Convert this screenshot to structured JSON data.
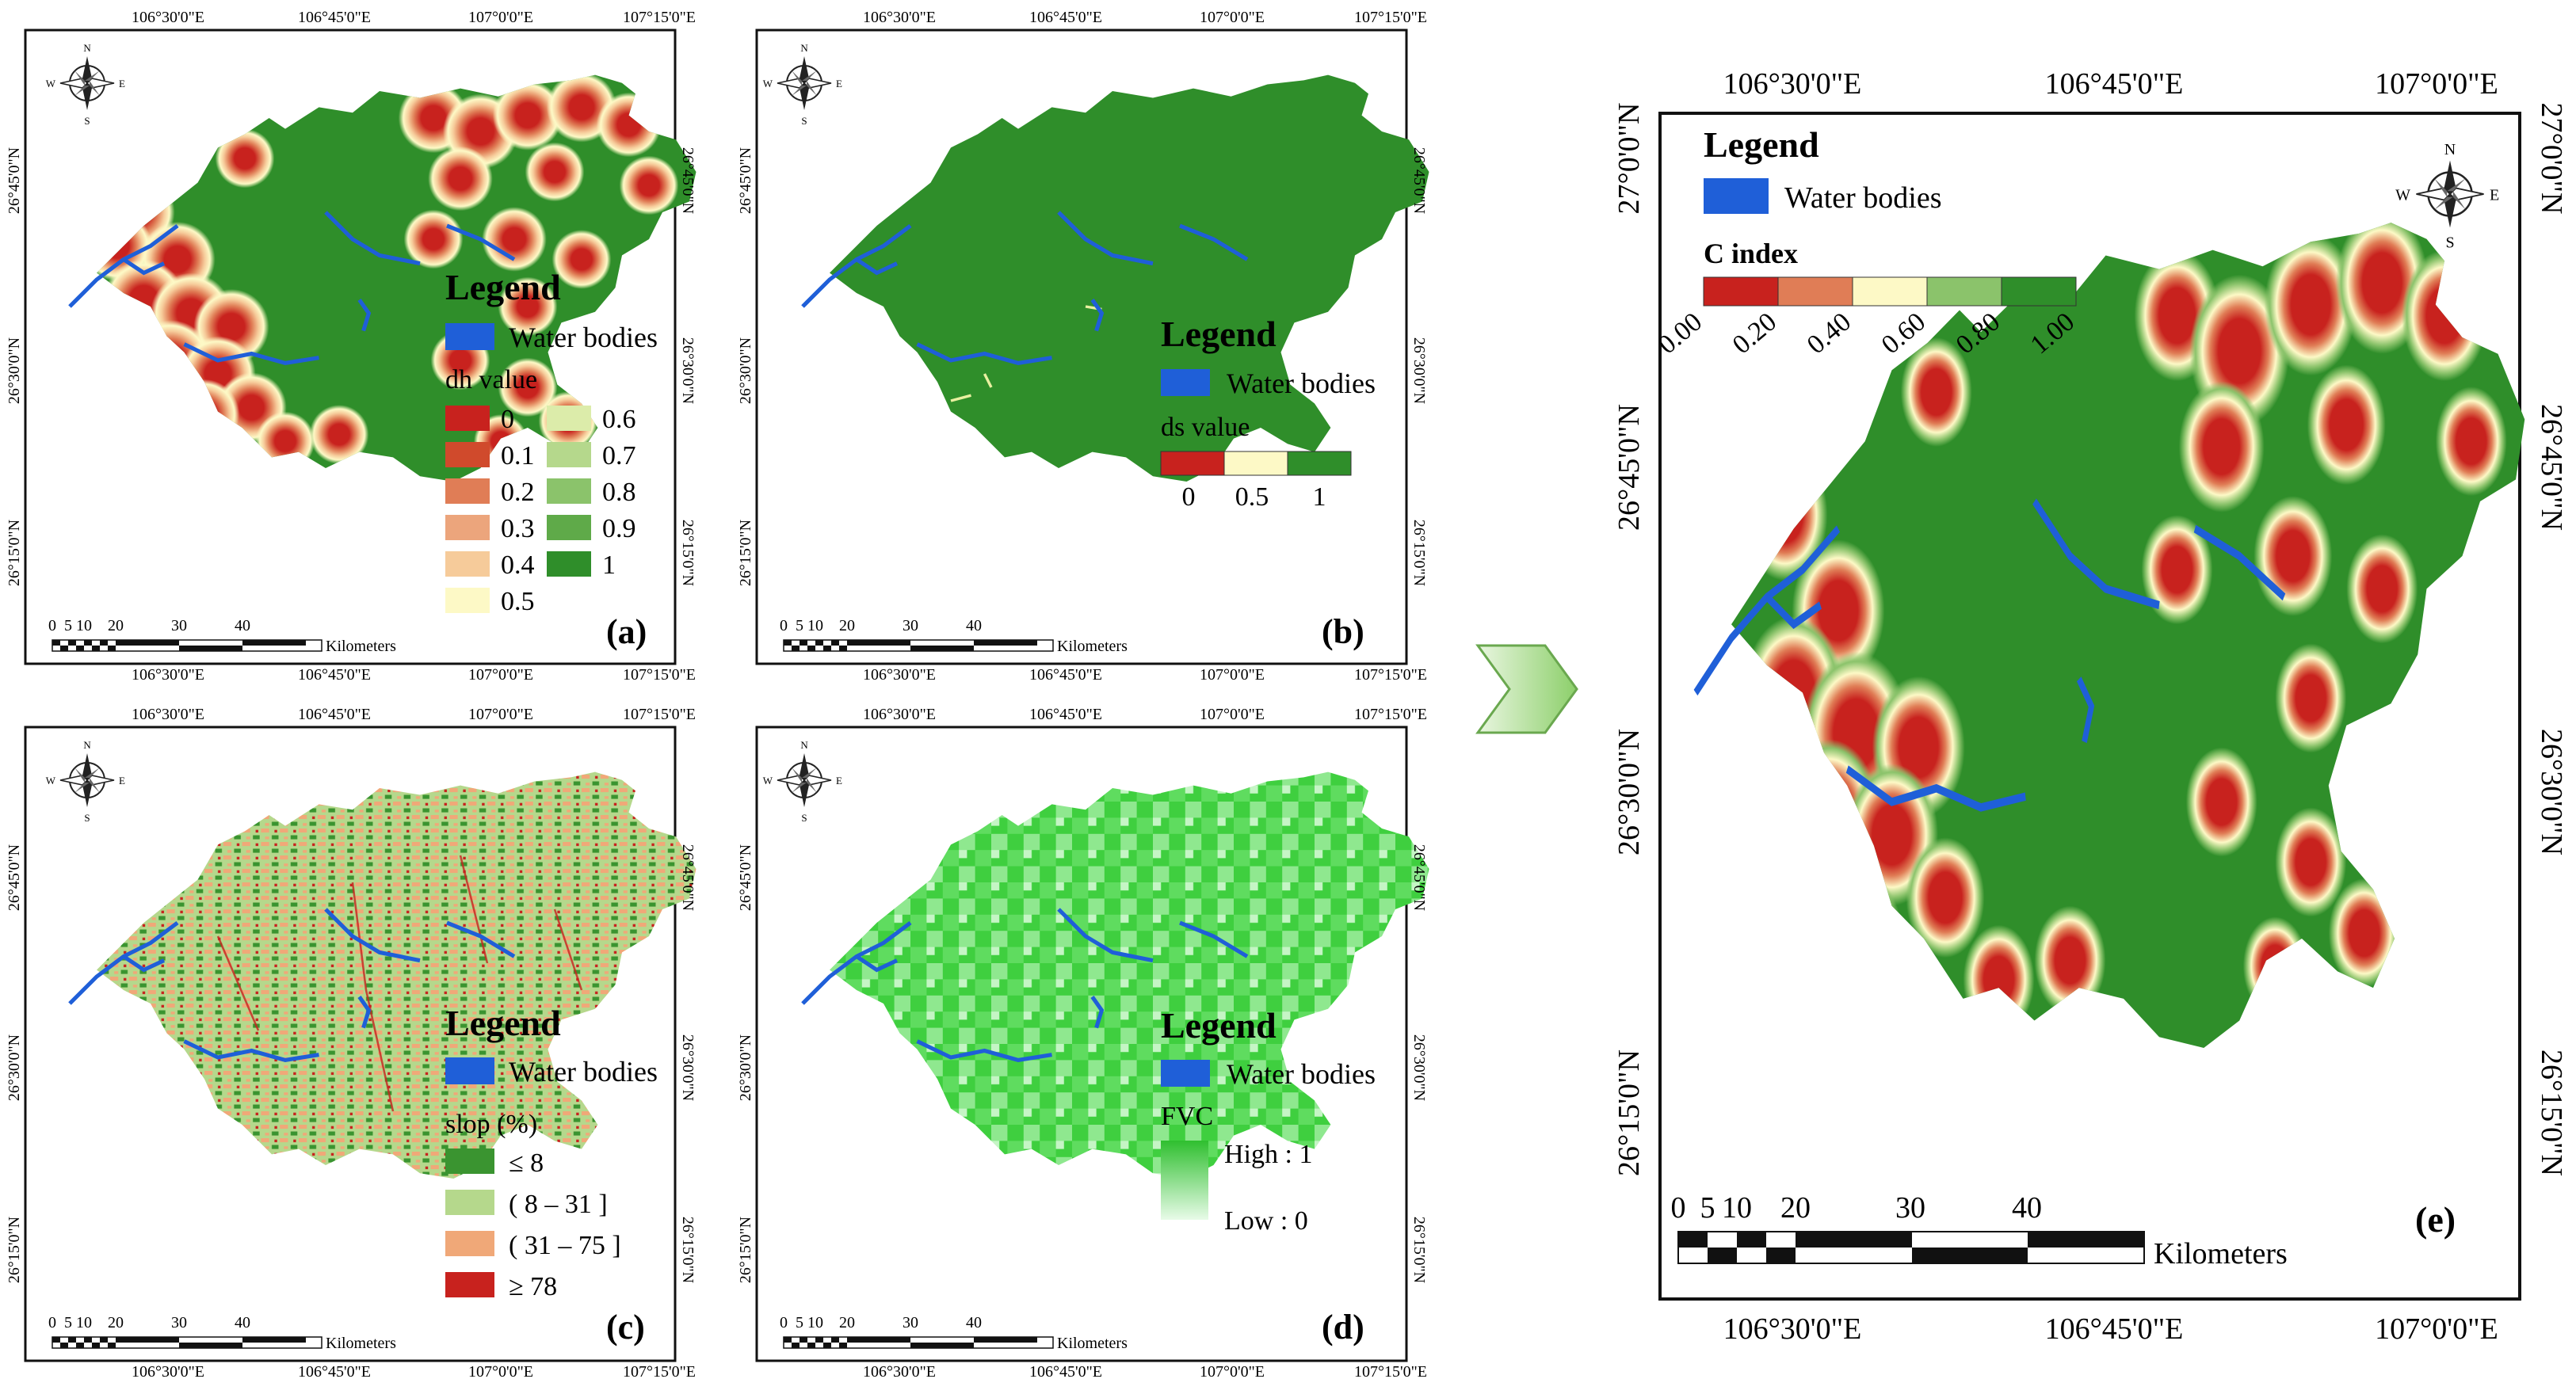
{
  "panels": {
    "a": {
      "letter": "(a)",
      "legend_title": "Legend",
      "water_label": "Water bodies",
      "field_title": "dh value",
      "classes_col1": [
        "0",
        "0.1",
        "0.2",
        "0.3",
        "0.4",
        "0.5"
      ],
      "classes_col2": [
        "0.6",
        "0.7",
        "0.8",
        "0.9",
        "1"
      ],
      "colors_col1": [
        "#c8221e",
        "#d04a2c",
        "#e07d56",
        "#eca57c",
        "#f6cb9a",
        "#fdf9c6"
      ],
      "colors_col2": [
        "#dcecaa",
        "#b5d88c",
        "#8bc36b",
        "#5faa49",
        "#2f8e2a"
      ]
    },
    "b": {
      "letter": "(b)",
      "legend_title": "Legend",
      "water_label": "Water bodies",
      "field_title": "ds value",
      "ramp_labels": [
        "0",
        "0.5",
        "1"
      ],
      "ramp_colors": [
        "#c8221e",
        "#fdf9c6",
        "#2f8e2a"
      ]
    },
    "c": {
      "letter": "(c)",
      "legend_title": "Legend",
      "water_label": "Water bodies",
      "field_title": "slop (%)",
      "classes": [
        "≤ 8",
        "( 8 – 31 ]",
        "( 31 – 75 ]",
        "≥ 78"
      ],
      "colors": [
        "#3a9430",
        "#b5d88c",
        "#f0a878",
        "#c8221e"
      ]
    },
    "d": {
      "letter": "(d)",
      "legend_title": "Legend",
      "water_label": "Water bodies",
      "field_title": "FVC",
      "high_label": "High : 1",
      "low_label": "Low : 0"
    },
    "e": {
      "letter": "(e)",
      "legend_title": "Legend",
      "water_label": "Water bodies",
      "field_title": "C index",
      "ramp_labels": [
        "0.00",
        "0.20",
        "0.40",
        "0.60",
        "0.80",
        "1.00"
      ],
      "ramp_colors": [
        "#c8221e",
        "#e07d56",
        "#fdf9c6",
        "#8bc36b",
        "#2f8e2a"
      ]
    }
  },
  "small_grid": {
    "lon_labels": [
      "106°30'0\"E",
      "106°45'0\"E",
      "107°0'0\"E",
      "107°15'0\"E"
    ],
    "lat_labels": [
      "26°45'0\"N",
      "26°30'0\"N",
      "26°15'0\"N"
    ],
    "scale_ticks": [
      "0",
      "5",
      "10",
      "20",
      "30",
      "40"
    ],
    "scale_unit": "Kilometers"
  },
  "big_grid": {
    "lon_labels": [
      "106°30'0\"E",
      "106°45'0\"E",
      "107°0'0\"E"
    ],
    "lat_labels": [
      "27°0'0\"N",
      "26°45'0\"N",
      "26°30'0\"N",
      "26°15'0\"N"
    ],
    "scale_ticks": [
      "0",
      "5",
      "10",
      "20",
      "30",
      "40"
    ],
    "scale_unit": "Kilometers"
  },
  "compass": {
    "n": "N",
    "s": "S",
    "e": "E",
    "w": "W"
  },
  "colors": {
    "water": "#1f5fd8",
    "forest": "#2f8e2a",
    "fvc_high": "#2fbf2f",
    "fvc_low": "#e8fbe8"
  }
}
